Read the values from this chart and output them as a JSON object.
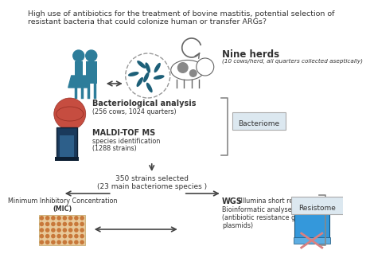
{
  "bg_color": "#ffffff",
  "title_line1": "High use of antibiotics for the treatment of bovine mastitis, potential selection of",
  "title_line2": "resistant bacteria that could colonize human or transfer ARGs?",
  "nine_herds_bold": "Nine herds",
  "nine_herds_sub": "(10 cows/herd, all quarters collected aseptically)",
  "bactan_bold": "Bacteriological analysis",
  "bactan_sub": "(256 cows, 1024 quarters)",
  "maldi_bold": "MALDI-TOF MS",
  "maldi_sub1": "species identification",
  "maldi_sub2": "(1288 strains)",
  "strains_line1": "350 strains selected",
  "strains_line2": "(23 main bacteriome species )",
  "mic_line1": "Minimum Inhibitory Concentration",
  "mic_line2": "(MIC)",
  "wgs_bold": "WGS",
  "wgs_rest": " (Illumina short reads)",
  "wgs_sub1": "Bioinformatic analyses",
  "wgs_sub2": "(antibiotic resistance genes,",
  "wgs_sub3": "plasmids)",
  "bacteriome_label": "Bacteriome",
  "resistome_label": "Resistome",
  "teal": "#2d7d9a",
  "dark_teal": "#1c5f78",
  "petri_red": "#c0392b",
  "maldi_dark": "#1a3a5c",
  "maldi_mid": "#2d5f8a",
  "plate_bg": "#e8c99a",
  "plate_dot": "#c8783a",
  "laptop_blue": "#3498db",
  "laptop_dark": "#1a5276",
  "laptop_bar": "#5dade2",
  "cross_red": "#e74c3c",
  "cross_pink": "#d98080",
  "bracket_color": "#888888",
  "box_fill": "#dce8f0",
  "box_edge": "#aaaaaa",
  "arrow_color": "#444444",
  "text_color": "#333333",
  "title_fs": 6.8,
  "label_fs": 7.0,
  "sub_fs": 5.8,
  "small_fs": 5.5
}
